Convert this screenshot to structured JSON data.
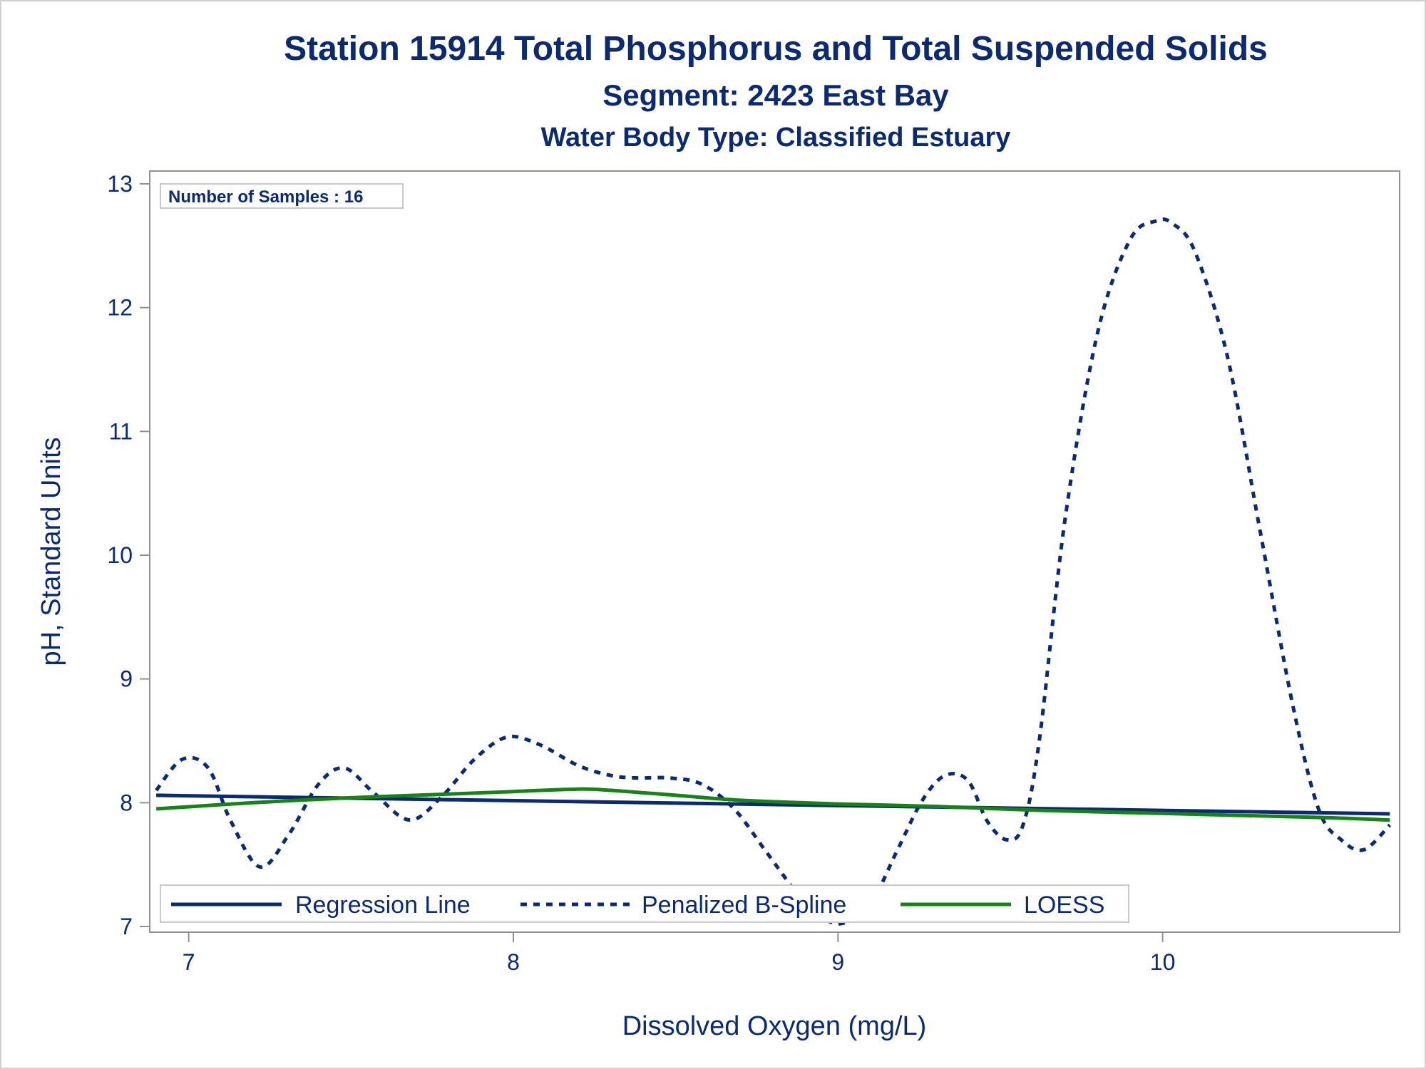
{
  "chart_data": {
    "type": "line",
    "title": "Station 15914  Total Phosphorus and Total Suspended Solids",
    "subtitle": "Segment: 2423  East Bay",
    "subtitle2": "Water Body Type: Classified Estuary",
    "xlabel": "Dissolved Oxygen (mg/L)",
    "ylabel": "pH, Standard Units",
    "xlim": [
      6.88,
      10.73
    ],
    "ylim": [
      7,
      13
    ],
    "xticks": [
      7,
      8,
      9,
      10
    ],
    "yticks": [
      7,
      8,
      9,
      10,
      11,
      12,
      13
    ],
    "inset_label": "Number of Samples : 16",
    "legend_position": "bottom-left inside",
    "grid": false,
    "series": [
      {
        "name": "Regression Line",
        "style": "solid",
        "color": "#0b2a6f",
        "x": [
          6.9,
          10.7
        ],
        "y": [
          8.06,
          7.91
        ]
      },
      {
        "name": "Penalized B-Spline",
        "style": "dashed",
        "color": "#0b2a6f",
        "x": [
          6.9,
          6.98,
          7.06,
          7.13,
          7.22,
          7.31,
          7.4,
          7.48,
          7.57,
          7.68,
          7.78,
          7.88,
          7.98,
          8.08,
          8.2,
          8.3,
          8.38,
          8.48,
          8.58,
          8.68,
          8.78,
          8.88,
          8.96,
          9.02,
          9.1,
          9.18,
          9.26,
          9.33,
          9.4,
          9.46,
          9.52,
          9.57,
          9.62,
          9.7,
          9.8,
          9.9,
          9.98,
          10.03,
          10.1,
          10.2,
          10.3,
          10.4,
          10.48,
          10.55,
          10.62,
          10.7
        ],
        "y": [
          8.1,
          8.35,
          8.28,
          7.85,
          7.48,
          7.75,
          8.15,
          8.28,
          8.08,
          7.86,
          8.05,
          8.35,
          8.53,
          8.47,
          8.3,
          8.22,
          8.2,
          8.2,
          8.15,
          7.95,
          7.6,
          7.25,
          7.06,
          7.03,
          7.18,
          7.6,
          8.02,
          8.22,
          8.18,
          7.85,
          7.7,
          7.82,
          8.5,
          10.3,
          11.8,
          12.55,
          12.7,
          12.68,
          12.45,
          11.6,
          10.2,
          8.8,
          7.95,
          7.7,
          7.62,
          7.82
        ]
      },
      {
        "name": "LOESS",
        "style": "solid",
        "color": "#178217",
        "x": [
          6.9,
          7.2,
          7.5,
          7.8,
          8.0,
          8.2,
          8.3,
          8.5,
          8.7,
          9.0,
          9.3,
          9.6,
          9.9,
          10.2,
          10.5,
          10.7
        ],
        "y": [
          7.95,
          8.0,
          8.04,
          8.07,
          8.09,
          8.11,
          8.1,
          8.06,
          8.02,
          7.99,
          7.97,
          7.94,
          7.92,
          7.9,
          7.88,
          7.86
        ]
      }
    ]
  },
  "colors": {
    "text": "#0b2a6f",
    "regression": "#0b2a6f",
    "spline": "#0b2a6f",
    "loess": "#178217",
    "axis": "#8f9399"
  }
}
